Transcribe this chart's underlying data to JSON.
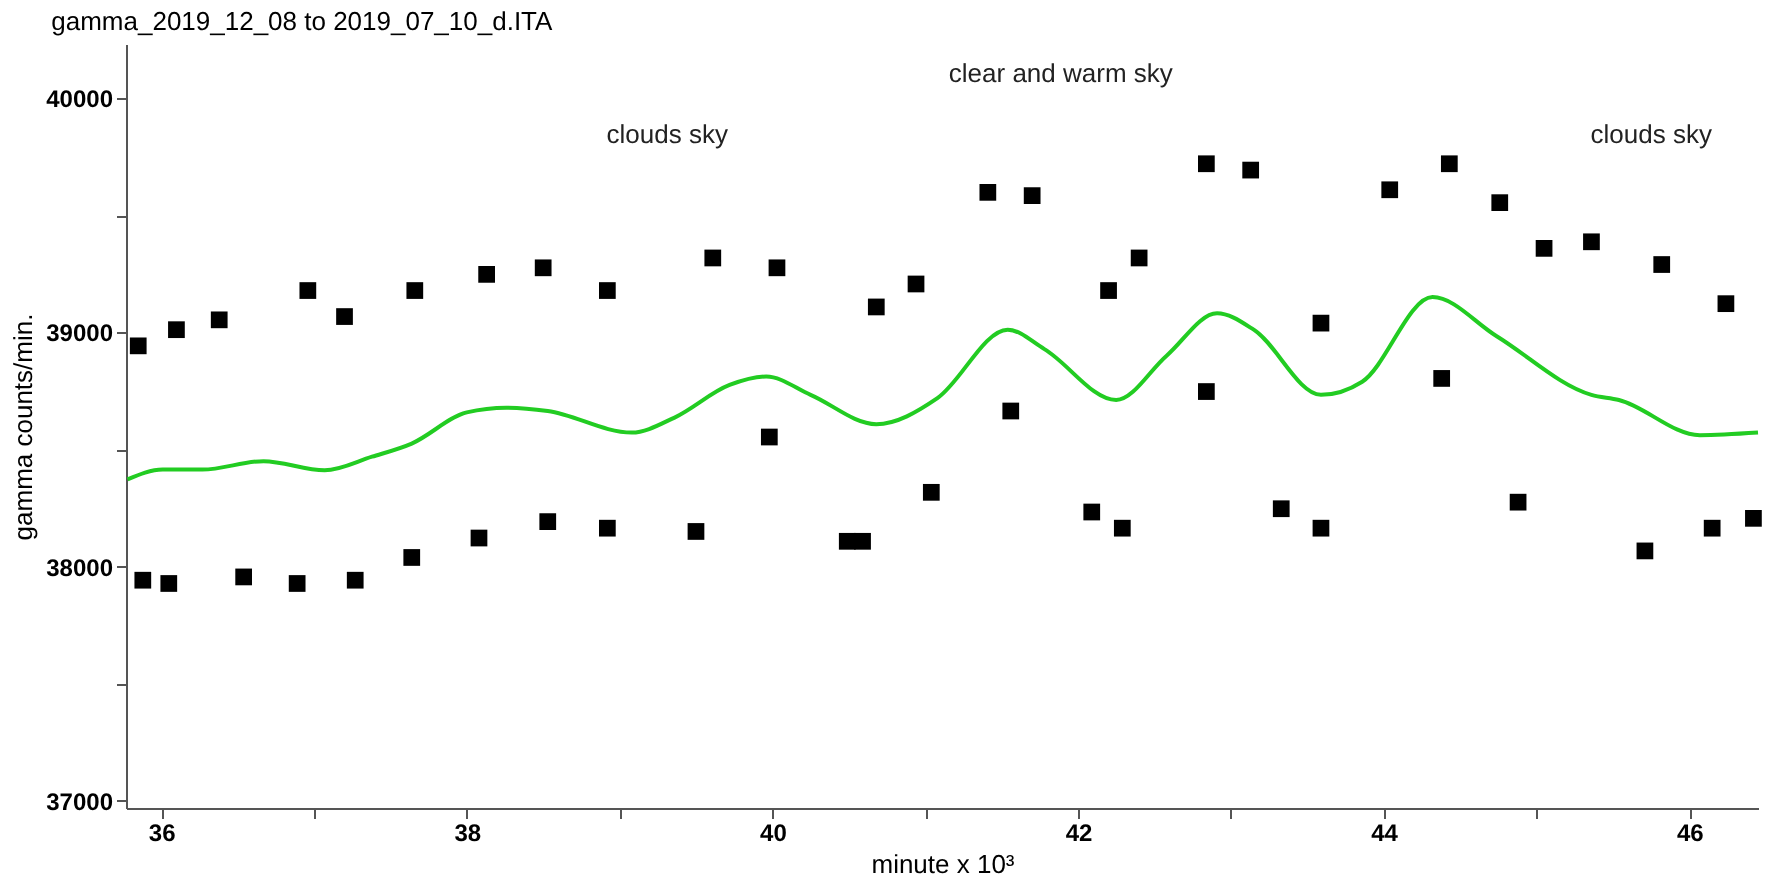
{
  "chart_data": {
    "type": "scatter",
    "title": "gamma_2019_12_08 to 2019_07_10_d.ITA",
    "xlabel": "minute x 10³",
    "ylabel": "gamma counts/min.",
    "xlim": [
      35.77,
      46.45
    ],
    "ylim": [
      36970,
      40230
    ],
    "xticks": [
      36,
      {
        "value": 37,
        "label": null
      },
      38,
      {
        "value": 39,
        "label": null
      },
      40,
      {
        "value": 41,
        "label": null
      },
      42,
      {
        "value": 43,
        "label": null
      },
      44,
      {
        "value": 45,
        "label": null
      },
      46
    ],
    "yticks": [
      37000,
      {
        "value": 37500,
        "label": null
      },
      38000,
      {
        "value": 38500,
        "label": null
      },
      39000,
      {
        "value": 39500,
        "label": null
      },
      40000
    ],
    "grid": false,
    "series": [
      {
        "color": "#000000",
        "marker": "square",
        "x": [
          35.85,
          35.88,
          36.05,
          36.1,
          36.38,
          36.54,
          36.89,
          36.96,
          37.2,
          37.27,
          37.64,
          37.66,
          38.08,
          38.13,
          38.5,
          38.53,
          38.92,
          38.92,
          39.5,
          39.61,
          39.98,
          40.03,
          40.49,
          40.59,
          40.68,
          40.94,
          41.04,
          41.41,
          41.56,
          41.7,
          42.09,
          42.2,
          42.29,
          42.4,
          42.84,
          42.84,
          43.13,
          43.33,
          43.59,
          43.59,
          44.04,
          44.38,
          44.43,
          44.76,
          44.88,
          45.05,
          45.36,
          45.71,
          45.82,
          46.15,
          46.24,
          46.42
        ],
        "values": [
          38942,
          37942,
          37928,
          39011,
          39053,
          37956,
          37928,
          39178,
          39067,
          37942,
          38039,
          39178,
          38122,
          39247,
          39275,
          38192,
          39178,
          38164,
          38150,
          39317,
          38553,
          39275,
          38108,
          38108,
          39108,
          39206,
          38317,
          39597,
          38664,
          39583,
          38233,
          39178,
          38164,
          39317,
          39719,
          38747,
          39692,
          38247,
          39039,
          38164,
          39608,
          38803,
          39719,
          39553,
          38275,
          39358,
          39386,
          38067,
          39289,
          38164,
          39122,
          38206
        ]
      },
      {
        "type": "line",
        "color": "#22cc22",
        "marker": "none",
        "line_style": "solid",
        "x": [
          35.78,
          36.01,
          36.27,
          36.67,
          37.07,
          37.38,
          37.64,
          38.0,
          38.26,
          38.53,
          39.08,
          39.36,
          39.72,
          39.96,
          40.25,
          40.68,
          41.08,
          41.54,
          41.78,
          42.25,
          42.58,
          42.91,
          43.15,
          43.59,
          43.86,
          44.32,
          44.74,
          45.36,
          45.54,
          46.07,
          46.45
        ],
        "values": [
          38372,
          38414,
          38414,
          38450,
          38411,
          38469,
          38525,
          38658,
          38678,
          38664,
          38572,
          38636,
          38775,
          38811,
          38733,
          38608,
          38719,
          39011,
          38928,
          38711,
          38900,
          39081,
          39011,
          38733,
          38789,
          39150,
          38983,
          38733,
          38711,
          38561,
          38572
        ]
      }
    ],
    "annotations": [
      "clouds sky",
      "clear and warm sky",
      "clouds sky"
    ]
  }
}
